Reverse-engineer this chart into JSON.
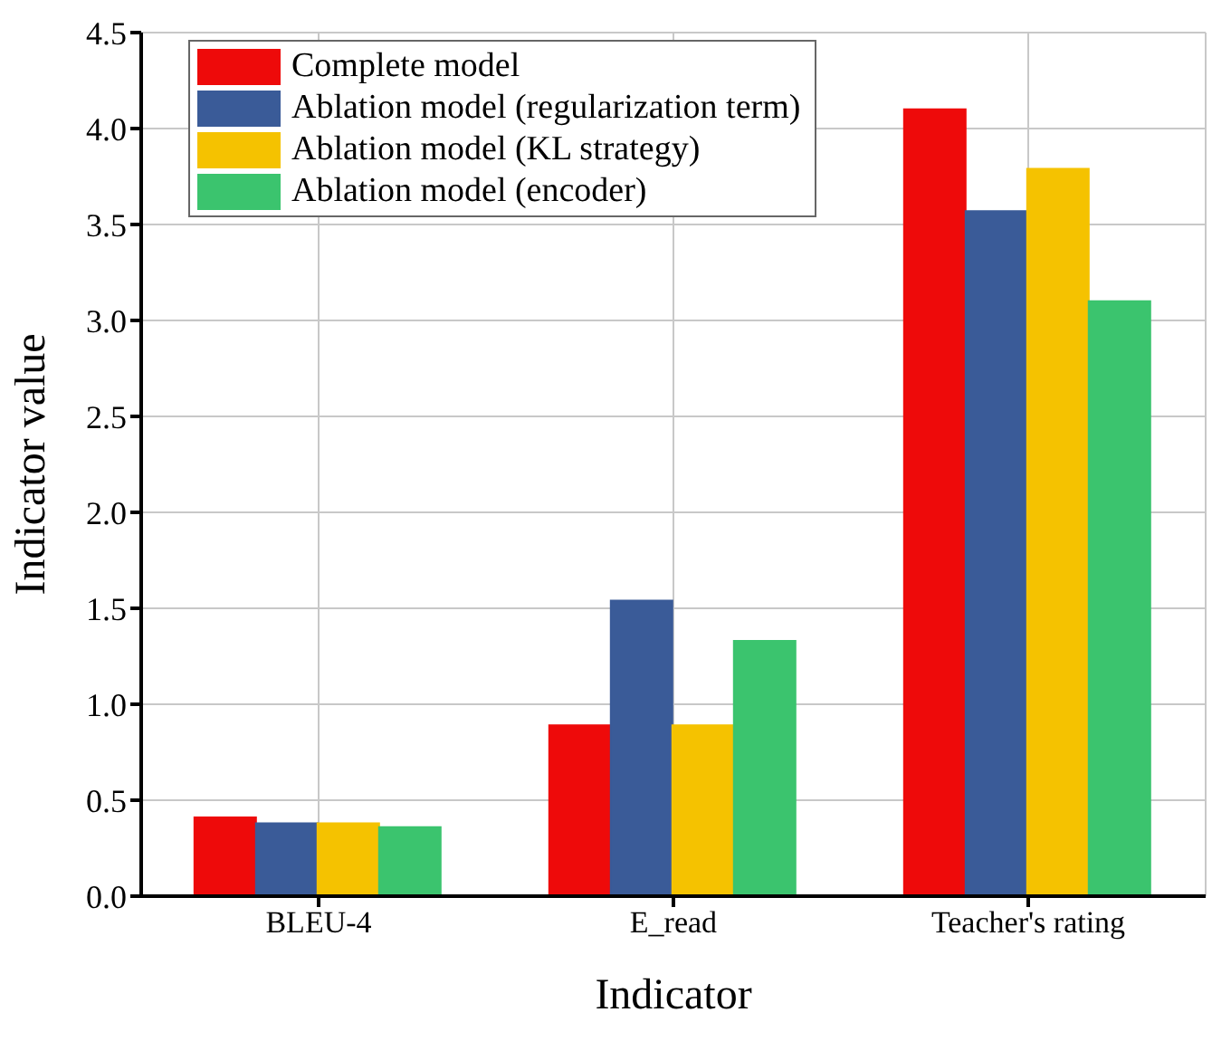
{
  "chart_data": {
    "type": "bar",
    "xlabel": "Indicator",
    "ylabel": "Indicator value",
    "categories": [
      "BLEU-4",
      "E_read",
      "Teacher's rating"
    ],
    "series": [
      {
        "name": "Complete model",
        "color": "#ee0a0a",
        "values": [
          0.41,
          0.89,
          4.1
        ]
      },
      {
        "name": "Ablation model (regularization term)",
        "color": "#3a5b98",
        "values": [
          0.38,
          1.54,
          3.57
        ]
      },
      {
        "name": "Ablation model (KL strategy)",
        "color": "#f5c200",
        "values": [
          0.38,
          0.89,
          3.79
        ]
      },
      {
        "name": "Ablation model (encoder)",
        "color": "#3bc46e",
        "values": [
          0.36,
          1.33,
          3.1
        ]
      }
    ],
    "ylim": [
      0,
      4.5
    ],
    "yticks": [
      {
        "value": 0,
        "label": "0.0"
      },
      0.5,
      {
        "value": 1,
        "label": "1.0"
      },
      1.5,
      {
        "value": 2,
        "label": "2.0"
      },
      2.5,
      {
        "value": 3,
        "label": "3.0"
      },
      3.5,
      {
        "value": 4,
        "label": "4.0"
      },
      4.5
    ],
    "grid": true,
    "legend": "top left"
  }
}
